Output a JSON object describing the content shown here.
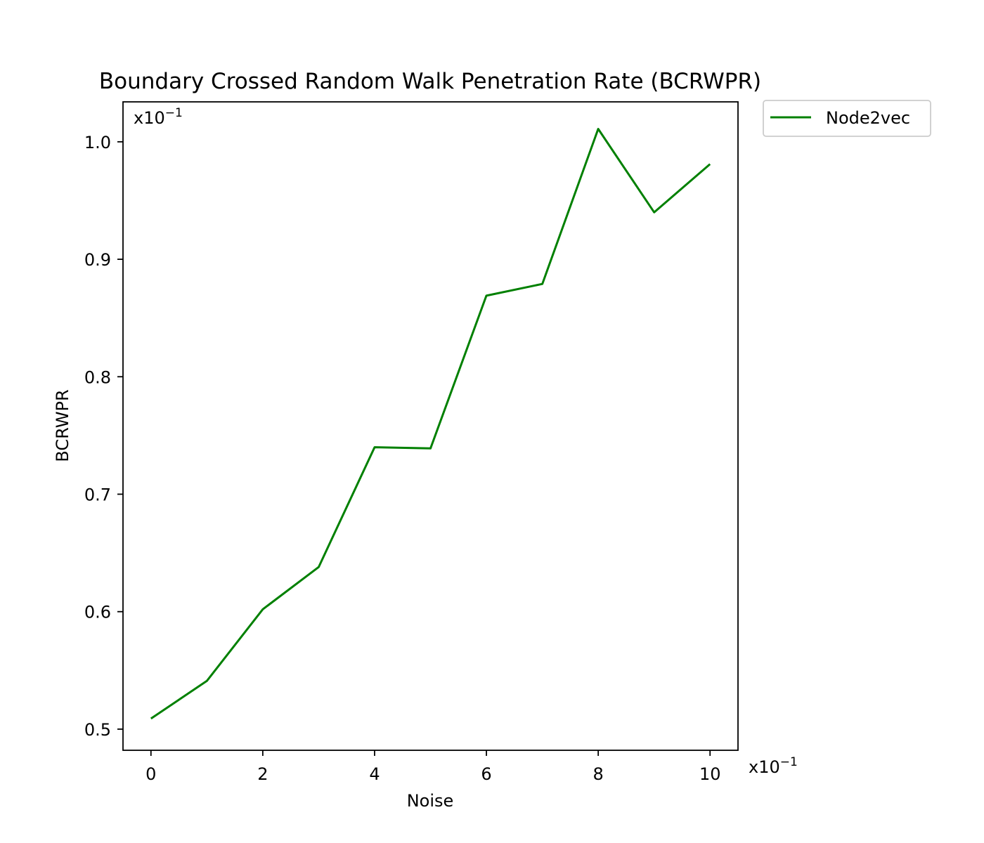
{
  "chart_data": {
    "type": "line",
    "title": "Boundary Crossed Random Walk Penetration Rate (BCRWPR)",
    "xlabel": "Noise",
    "ylabel": "BCRWPR",
    "x_multiplier": "x10",
    "x_multiplier_exp": "−1",
    "y_multiplier": "x10",
    "y_multiplier_exp": "−1",
    "xlim": [
      -0.5,
      10.5
    ],
    "ylim": [
      0.482,
      1.034
    ],
    "xticks": [
      0,
      2,
      4,
      6,
      8,
      10
    ],
    "xtick_labels": [
      "0",
      "2",
      "4",
      "6",
      "8",
      "10"
    ],
    "yticks": [
      0.5,
      0.6,
      0.7,
      0.8,
      0.9,
      1.0
    ],
    "ytick_labels": [
      "0.5",
      "0.6",
      "0.7",
      "0.8",
      "0.9",
      "1.0"
    ],
    "grid": false,
    "legend_position": "outside-top-right",
    "series": [
      {
        "name": "Node2vec",
        "color": "#008000",
        "x": [
          0,
          1,
          2,
          3,
          4,
          5,
          6,
          7,
          8,
          9,
          10
        ],
        "y": [
          0.509,
          0.541,
          0.602,
          0.638,
          0.74,
          0.739,
          0.869,
          0.879,
          1.011,
          0.94,
          0.981
        ]
      }
    ]
  }
}
